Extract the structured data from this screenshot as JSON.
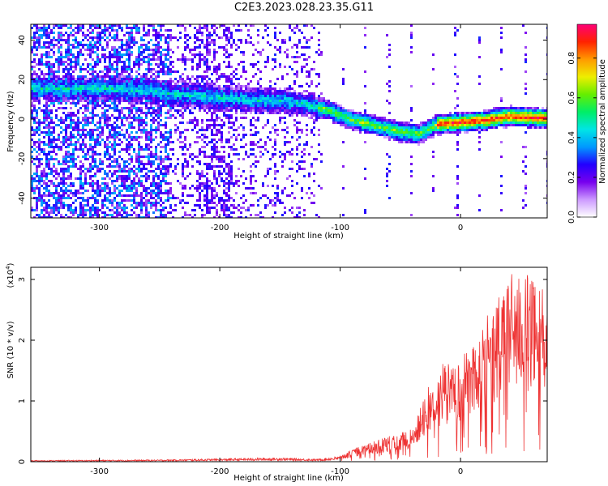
{
  "title": "C2E3.2023.028.23.35.G11",
  "chart_data": [
    {
      "type": "heatmap",
      "xlabel": "Height of straight line (km)",
      "ylabel": "Frequency (Hz)",
      "xlim": [
        -357,
        72
      ],
      "ylim": [
        -50,
        48
      ],
      "x_ticks": [
        -300,
        -200,
        -100,
        0
      ],
      "y_ticks": [
        -40,
        -20,
        0,
        20,
        40
      ],
      "colorbar": {
        "label": "Normalized spectral amplitude",
        "range": [
          0,
          0.97
        ],
        "ticks": [
          0.0,
          0.2,
          0.4,
          0.6,
          0.8
        ],
        "colors": [
          "#ffffff",
          "#cc99ff",
          "#7700ee",
          "#2200ff",
          "#0099ff",
          "#00e5e5",
          "#00ee66",
          "#66ee00",
          "#eeee00",
          "#ff9900",
          "#ff2200",
          "#ff0077"
        ]
      },
      "ridge": [
        {
          "x": -290,
          "y": 16
        },
        {
          "x": -260,
          "y": 15
        },
        {
          "x": -240,
          "y": 13
        },
        {
          "x": -230,
          "y": 13
        },
        {
          "x": -210,
          "y": 12
        },
        {
          "x": -190,
          "y": 11
        },
        {
          "x": -170,
          "y": 10
        },
        {
          "x": -150,
          "y": 10
        },
        {
          "x": -130,
          "y": 8
        },
        {
          "x": -110,
          "y": 5
        },
        {
          "x": -90,
          "y": 0
        },
        {
          "x": -70,
          "y": -3
        },
        {
          "x": -50,
          "y": -6
        },
        {
          "x": -35,
          "y": -7
        },
        {
          "x": -20,
          "y": -2
        },
        {
          "x": 0,
          "y": -1
        },
        {
          "x": 20,
          "y": 0
        },
        {
          "x": 40,
          "y": 2
        },
        {
          "x": 72,
          "y": 1
        }
      ]
    },
    {
      "type": "line",
      "xlabel": "Height of straight line (km)",
      "ylabel": "SNR (10 * v/v)",
      "multiplier": "(x10",
      "multiplier_exp": "4",
      "multiplier_close": ")",
      "xlim": [
        -357,
        72
      ],
      "ylim": [
        0,
        3.2
      ],
      "x_ticks": [
        -300,
        -200,
        -100,
        0
      ],
      "y_ticks": [
        0,
        1,
        2,
        3
      ],
      "color": "#ee3333",
      "envelope": [
        {
          "x": -357,
          "y": 0.02
        },
        {
          "x": -250,
          "y": 0.03
        },
        {
          "x": -150,
          "y": 0.06
        },
        {
          "x": -120,
          "y": 0.04
        },
        {
          "x": -100,
          "y": 0.08
        },
        {
          "x": -85,
          "y": 0.2
        },
        {
          "x": -60,
          "y": 0.35
        },
        {
          "x": -40,
          "y": 0.45
        },
        {
          "x": -30,
          "y": 0.9
        },
        {
          "x": -15,
          "y": 1.3
        },
        {
          "x": 0,
          "y": 1.4
        },
        {
          "x": 15,
          "y": 1.8
        },
        {
          "x": 30,
          "y": 2.2
        },
        {
          "x": 45,
          "y": 2.7
        },
        {
          "x": 60,
          "y": 2.5
        },
        {
          "x": 72,
          "y": 2.2
        }
      ]
    }
  ]
}
